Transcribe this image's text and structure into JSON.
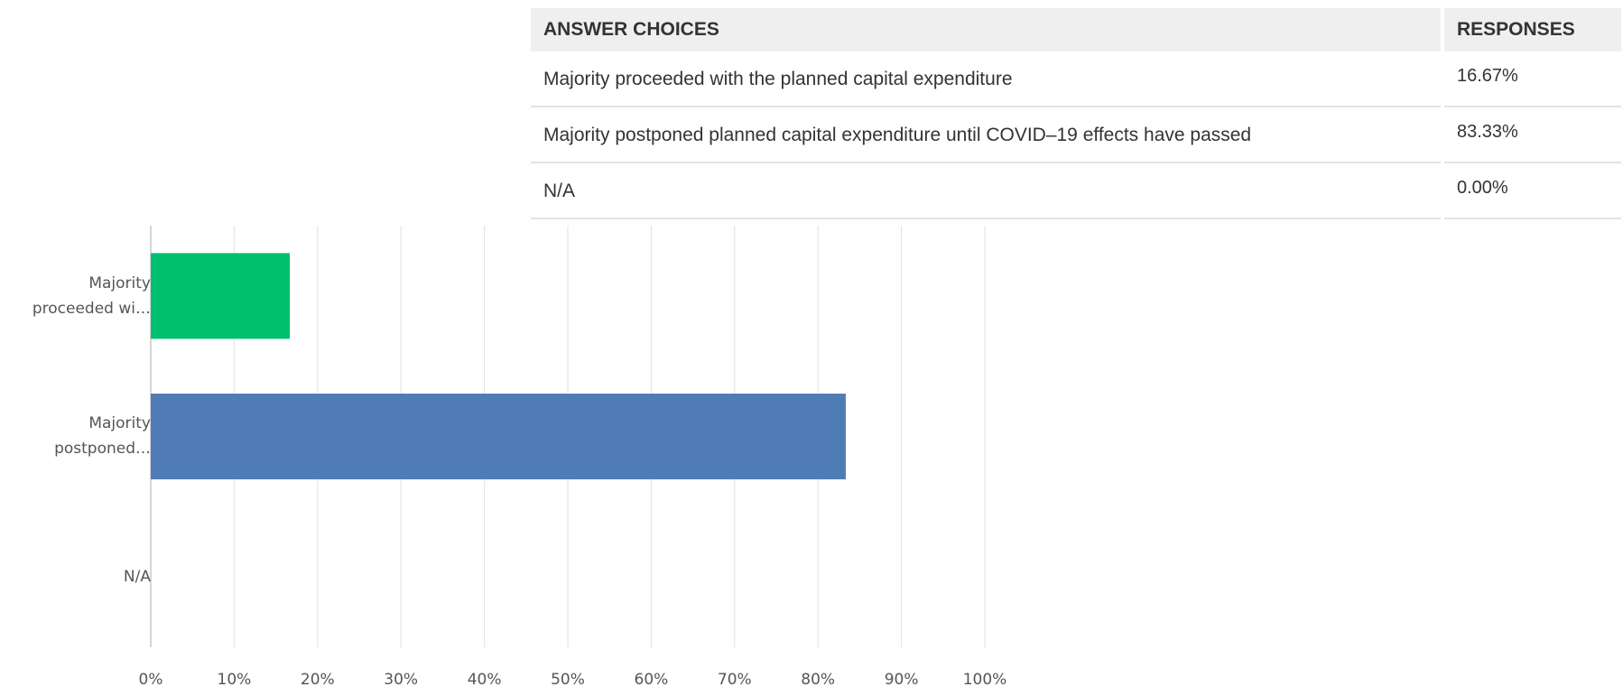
{
  "chart_data": {
    "type": "bar",
    "orientation": "horizontal",
    "categories": [
      "Majority proceeded wi…",
      "Majority postponed…",
      "N/A"
    ],
    "values": [
      16.67,
      83.33,
      0
    ],
    "colors": [
      "#00bf6f",
      "#507cb6",
      "#507cb6"
    ],
    "xlim": [
      0,
      100
    ],
    "xticks": [
      {
        "value": 0,
        "label": "0%"
      },
      {
        "value": 10,
        "label": "10%"
      },
      {
        "value": 20,
        "label": "20%"
      },
      {
        "value": 30,
        "label": "30%"
      },
      {
        "value": 40,
        "label": "40%"
      },
      {
        "value": 50,
        "label": "50%"
      },
      {
        "value": 60,
        "label": "60%"
      },
      {
        "value": 70,
        "label": "70%"
      },
      {
        "value": 80,
        "label": "80%"
      },
      {
        "value": 90,
        "label": "90%"
      },
      {
        "value": 100,
        "label": "100%"
      }
    ],
    "grid": true
  },
  "table": {
    "header": [
      "ANSWER CHOICES",
      "RESPONSES"
    ],
    "rows": [
      [
        "Majority proceeded with the planned capital expenditure",
        "16.67%"
      ],
      [
        "Majority postponed planned capital expenditure until COVID–19 effects have passed",
        "83.33%"
      ],
      [
        "N/A",
        "0.00%"
      ]
    ]
  }
}
